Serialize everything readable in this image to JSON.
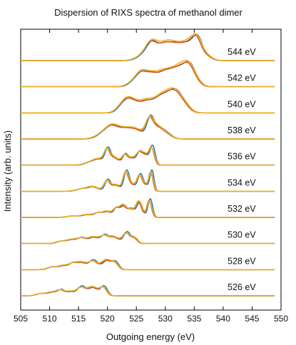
{
  "chart_data": {
    "type": "line",
    "title": "Dispersion of RIXS spectra of methanol dimer",
    "xlabel": "Outgoing energy (eV)",
    "ylabel": "Intensity (arb. units)",
    "xlim": [
      505,
      550
    ],
    "xticks": [
      505,
      510,
      515,
      520,
      525,
      530,
      535,
      540,
      545,
      550
    ],
    "yticks_visible": false,
    "grid": false,
    "legend": "none",
    "colors": {
      "series_1": "#1f77b4",
      "series_2": "#d95319",
      "series_3": "#edb120"
    },
    "spectra": [
      {
        "label": "544 eV",
        "peaks": [
          [
            526.5,
            0.35,
            1.2
          ],
          [
            527.8,
            0.85,
            0.9
          ],
          [
            529.5,
            0.55,
            0.8
          ],
          [
            530.8,
            0.7,
            0.9
          ],
          [
            532.5,
            0.75,
            1.0
          ],
          [
            534.5,
            0.9,
            1.0
          ],
          [
            535.6,
            0.75,
            0.7
          ],
          [
            537.0,
            0.3,
            0.9
          ]
        ]
      },
      {
        "label": "542 eV",
        "peaks": [
          [
            524.8,
            0.35,
            1.0
          ],
          [
            526.0,
            0.6,
            0.8
          ],
          [
            527.5,
            0.55,
            0.8
          ],
          [
            529.2,
            0.6,
            1.0
          ],
          [
            531.0,
            0.7,
            1.1
          ],
          [
            533.0,
            0.95,
            1.1
          ],
          [
            534.3,
            0.7,
            0.8
          ],
          [
            535.5,
            0.25,
            0.8
          ]
        ]
      },
      {
        "label": "540 eV",
        "peaks": [
          [
            522.3,
            0.3,
            0.8
          ],
          [
            523.5,
            0.6,
            0.8
          ],
          [
            524.8,
            0.45,
            0.8
          ],
          [
            526.5,
            0.5,
            0.9
          ],
          [
            528.5,
            0.55,
            1.2
          ],
          [
            530.5,
            0.85,
            1.3
          ],
          [
            532.0,
            0.7,
            1.0
          ],
          [
            533.5,
            0.3,
            0.9
          ]
        ]
      },
      {
        "label": "538 eV",
        "peaks": [
          [
            519.5,
            0.35,
            1.2
          ],
          [
            521.0,
            0.55,
            1.0
          ],
          [
            523.0,
            0.45,
            1.0
          ],
          [
            525.0,
            0.5,
            1.1
          ],
          [
            527.3,
            0.95,
            0.6
          ],
          [
            528.5,
            0.55,
            0.9
          ],
          [
            530.0,
            0.3,
            1.0
          ]
        ]
      },
      {
        "label": "536 eV",
        "peaks": [
          [
            517.0,
            0.15,
            0.9
          ],
          [
            518.5,
            0.3,
            0.8
          ],
          [
            520.0,
            0.85,
            0.5
          ],
          [
            521.3,
            0.4,
            0.6
          ],
          [
            523.0,
            0.55,
            0.5
          ],
          [
            524.2,
            0.35,
            0.6
          ],
          [
            525.5,
            0.65,
            0.5
          ],
          [
            526.5,
            0.5,
            0.5
          ],
          [
            527.7,
            1.0,
            0.45
          ]
        ]
      },
      {
        "label": "534 eV",
        "peaks": [
          [
            515.5,
            0.12,
            0.9
          ],
          [
            517.5,
            0.25,
            0.9
          ],
          [
            520.0,
            0.6,
            0.5
          ],
          [
            521.5,
            0.35,
            0.6
          ],
          [
            523.2,
            1.0,
            0.45
          ],
          [
            524.2,
            0.35,
            0.6
          ],
          [
            525.6,
            0.85,
            0.45
          ],
          [
            526.6,
            0.3,
            0.5
          ],
          [
            527.6,
            1.05,
            0.35
          ]
        ]
      },
      {
        "label": "532 eV",
        "peaks": [
          [
            514.0,
            0.08,
            0.9
          ],
          [
            516.5,
            0.15,
            0.9
          ],
          [
            518.5,
            0.25,
            0.7
          ],
          [
            520.0,
            0.3,
            0.6
          ],
          [
            521.5,
            0.5,
            0.5
          ],
          [
            522.7,
            0.6,
            0.5
          ],
          [
            524.0,
            0.45,
            0.6
          ],
          [
            525.5,
            0.85,
            0.5
          ],
          [
            527.3,
            0.95,
            0.4
          ]
        ]
      },
      {
        "label": "530 eV",
        "peaks": [
          [
            512.0,
            0.12,
            0.8
          ],
          [
            513.8,
            0.2,
            0.8
          ],
          [
            515.5,
            0.3,
            0.7
          ],
          [
            517.5,
            0.35,
            0.8
          ],
          [
            519.5,
            0.45,
            0.7
          ],
          [
            521.2,
            0.35,
            0.7
          ],
          [
            523.3,
            0.6,
            0.6
          ],
          [
            524.7,
            0.3,
            0.5
          ]
        ]
      },
      {
        "label": "528 eV",
        "peaks": [
          [
            510.5,
            0.15,
            0.8
          ],
          [
            512.3,
            0.2,
            0.7
          ],
          [
            514.0,
            0.35,
            0.7
          ],
          [
            515.5,
            0.35,
            0.7
          ],
          [
            517.5,
            0.5,
            0.8
          ],
          [
            519.8,
            0.5,
            0.7
          ],
          [
            521.3,
            0.4,
            0.6
          ]
        ]
      },
      {
        "label": "526 eV",
        "peaks": [
          [
            508.5,
            0.12,
            0.8
          ],
          [
            510.5,
            0.2,
            0.8
          ],
          [
            512.0,
            0.3,
            0.6
          ],
          [
            513.5,
            0.2,
            0.6
          ],
          [
            515.5,
            0.5,
            0.8
          ],
          [
            517.5,
            0.45,
            0.7
          ],
          [
            519.3,
            0.5,
            0.6
          ]
        ]
      }
    ]
  }
}
